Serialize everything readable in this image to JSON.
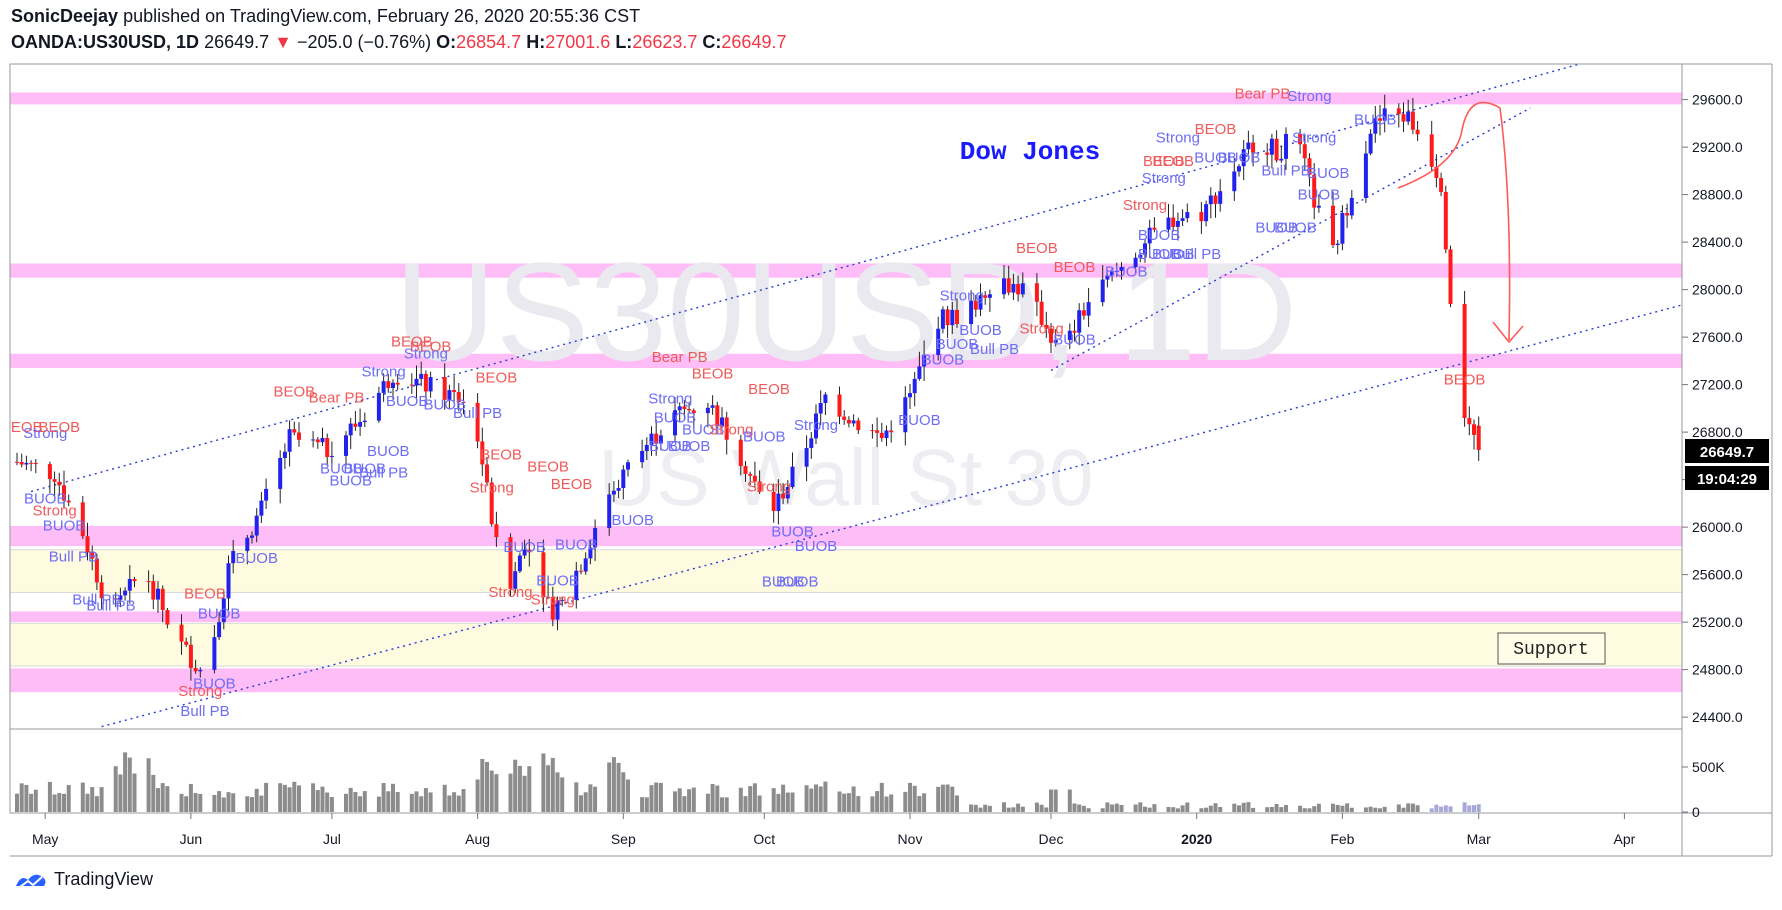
{
  "header": {
    "author": "SonicDeejay",
    "published": "published on TradingView.com, February 26, 2020 20:55:36 CST",
    "symbol": "OANDA:US30USD, 1D",
    "last": "26649.7",
    "change_arrow": "▼",
    "change": "−205.0 (−0.76%)",
    "o_label": "O:",
    "o_value": "26854.7",
    "h_label": "H:",
    "h_value": "27001.6",
    "l_label": "L:",
    "l_value": "26623.7",
    "c_label": "C:",
    "c_value": "26649.7"
  },
  "footer": {
    "brand": "TradingView"
  },
  "colors": {
    "up": "#2222ee",
    "down": "#ff1a1a",
    "zone_pink": "#ffbdf7",
    "zone_yellow": "#fffbe0",
    "bull_label": "#6d6df5",
    "bear_label": "#f05a5a",
    "volume": "#8c8c8c",
    "trendline": "#2b3bd6"
  },
  "chart_data": {
    "type": "candlestick",
    "title": "Dow Jones",
    "watermark": "US30USD, 1D",
    "watermark_sub": "US Wall St 30",
    "y_range": [
      24300,
      29900
    ],
    "y_ticks": [
      24400,
      24800,
      25200,
      25600,
      26000,
      26400,
      26800,
      27200,
      27600,
      28000,
      28400,
      28800,
      29200,
      29600
    ],
    "y_tick_labels": [
      "24400.0",
      "24800.0",
      "25200.0",
      "25600.0",
      "26000.0",
      "26400.0",
      "26800.0",
      "27200.0",
      "27600.0",
      "28000.0",
      "28400.0",
      "28800.0",
      "29200.0",
      "29600.0"
    ],
    "x_range_days": [
      0,
      355
    ],
    "x_ticks": [
      {
        "day": 6,
        "label": "May",
        "bold": false
      },
      {
        "day": 37,
        "label": "Jun",
        "bold": false
      },
      {
        "day": 67,
        "label": "Jul",
        "bold": false
      },
      {
        "day": 98,
        "label": "Aug",
        "bold": false
      },
      {
        "day": 129,
        "label": "Sep",
        "bold": false
      },
      {
        "day": 159,
        "label": "Oct",
        "bold": false
      },
      {
        "day": 190,
        "label": "Nov",
        "bold": false
      },
      {
        "day": 220,
        "label": "Dec",
        "bold": false
      },
      {
        "day": 251,
        "label": "2020",
        "bold": true
      },
      {
        "day": 282,
        "label": "Feb",
        "bold": false
      },
      {
        "day": 311,
        "label": "Mar",
        "bold": false
      },
      {
        "day": 342,
        "label": "Apr",
        "bold": false
      }
    ],
    "price_label": "26649.7",
    "countdown_label": "19:04:29",
    "volume_ticks": [
      {
        "v": 500000,
        "label": "500K"
      },
      {
        "v": 0,
        "label": "0"
      }
    ],
    "volume_max": 800000,
    "support_label": "Support",
    "zones": [
      {
        "kind": "resistance",
        "from": 29560,
        "to": 29660
      },
      {
        "kind": "resistance",
        "from": 28100,
        "to": 28220
      },
      {
        "kind": "resistance",
        "from": 27340,
        "to": 27460
      },
      {
        "kind": "resistance",
        "from": 25840,
        "to": 26010
      },
      {
        "kind": "support_fill",
        "from": 25450,
        "to": 25810
      },
      {
        "kind": "resistance",
        "from": 25200,
        "to": 25290
      },
      {
        "kind": "support_fill",
        "from": 24830,
        "to": 25190
      },
      {
        "kind": "resistance",
        "from": 24610,
        "to": 24810
      }
    ],
    "trendlines": [
      {
        "d1": 3,
        "p1": 26300,
        "d2": 338,
        "p2": 29960
      },
      {
        "d1": 18,
        "p1": 24320,
        "d2": 357,
        "p2": 27900
      },
      {
        "d1": 220,
        "p1": 27320,
        "d2": 322,
        "p2": 29530
      }
    ],
    "candles_keypoints": [
      {
        "d": 0,
        "c": 26550
      },
      {
        "d": 8,
        "c": 26450
      },
      {
        "d": 14,
        "c": 25950
      },
      {
        "d": 20,
        "c": 25250
      },
      {
        "d": 27,
        "c": 25650
      },
      {
        "d": 34,
        "c": 25050
      },
      {
        "d": 40,
        "c": 24750
      },
      {
        "d": 45,
        "c": 25650
      },
      {
        "d": 52,
        "c": 26150
      },
      {
        "d": 58,
        "c": 26750
      },
      {
        "d": 66,
        "c": 26650
      },
      {
        "d": 73,
        "c": 26900
      },
      {
        "d": 80,
        "c": 27300
      },
      {
        "d": 90,
        "c": 27150
      },
      {
        "d": 96,
        "c": 27050
      },
      {
        "d": 99,
        "c": 26550
      },
      {
        "d": 104,
        "c": 25350
      },
      {
        "d": 108,
        "c": 25900
      },
      {
        "d": 114,
        "c": 25300
      },
      {
        "d": 120,
        "c": 25700
      },
      {
        "d": 126,
        "c": 26300
      },
      {
        "d": 133,
        "c": 26650
      },
      {
        "d": 140,
        "c": 26950
      },
      {
        "d": 147,
        "c": 27050
      },
      {
        "d": 154,
        "c": 26600
      },
      {
        "d": 160,
        "c": 26100
      },
      {
        "d": 166,
        "c": 26500
      },
      {
        "d": 172,
        "c": 27100
      },
      {
        "d": 178,
        "c": 26900
      },
      {
        "d": 184,
        "c": 26750
      },
      {
        "d": 190,
        "c": 27100
      },
      {
        "d": 196,
        "c": 27750
      },
      {
        "d": 202,
        "c": 27800
      },
      {
        "d": 208,
        "c": 28100
      },
      {
        "d": 214,
        "c": 28000
      },
      {
        "d": 219,
        "c": 27700
      },
      {
        "d": 222,
        "c": 27450
      },
      {
        "d": 228,
        "c": 27900
      },
      {
        "d": 234,
        "c": 28150
      },
      {
        "d": 240,
        "c": 28400
      },
      {
        "d": 246,
        "c": 28600
      },
      {
        "d": 252,
        "c": 28650
      },
      {
        "d": 258,
        "c": 28950
      },
      {
        "d": 264,
        "c": 29300
      },
      {
        "d": 268,
        "c": 29150
      },
      {
        "d": 272,
        "c": 29300
      },
      {
        "d": 276,
        "c": 28750
      },
      {
        "d": 280,
        "c": 28300
      },
      {
        "d": 284,
        "c": 28850
      },
      {
        "d": 288,
        "c": 29350
      },
      {
        "d": 292,
        "c": 29500
      },
      {
        "d": 296,
        "c": 29450
      },
      {
        "d": 300,
        "c": 29200
      },
      {
        "d": 303,
        "c": 28900
      },
      {
        "d": 305,
        "c": 27950
      },
      {
        "d": 307,
        "c": 27100
      },
      {
        "d": 309,
        "c": 26850
      },
      {
        "d": 311,
        "c": 26649.7
      }
    ],
    "annotations": [
      {
        "text": "BEOB",
        "d": 1,
        "p": 26800,
        "type": "bear"
      },
      {
        "text": "Strong",
        "d": 6,
        "p": 26750,
        "type": "bull"
      },
      {
        "text": "BEOB",
        "d": 9,
        "p": 26800,
        "type": "bear"
      },
      {
        "text": "BUOB",
        "d": 6,
        "p": 26200,
        "type": "bull"
      },
      {
        "text": "Strong",
        "d": 8,
        "p": 26100,
        "type": "bear"
      },
      {
        "text": "BUOB",
        "d": 10,
        "p": 25970,
        "type": "bull"
      },
      {
        "text": "Bull PB",
        "d": 12,
        "p": 25710,
        "type": "bull"
      },
      {
        "text": "Bull PB",
        "d": 17,
        "p": 25350,
        "type": "bull"
      },
      {
        "text": "Bull PB",
        "d": 20,
        "p": 25300,
        "type": "bull"
      },
      {
        "text": "BEOB",
        "d": 40,
        "p": 25400,
        "type": "bear"
      },
      {
        "text": "BUOB",
        "d": 43,
        "p": 25230,
        "type": "bull"
      },
      {
        "text": "BUOB",
        "d": 42,
        "p": 24640,
        "type": "bull"
      },
      {
        "text": "Strong",
        "d": 39,
        "p": 24580,
        "type": "bear"
      },
      {
        "text": "Bull PB",
        "d": 40,
        "p": 24410,
        "type": "bull"
      },
      {
        "text": "BUOB",
        "d": 51,
        "p": 25700,
        "type": "bull"
      },
      {
        "text": "BEOB",
        "d": 59,
        "p": 27100,
        "type": "bear"
      },
      {
        "text": "Bear PB",
        "d": 68,
        "p": 27050,
        "type": "bear"
      },
      {
        "text": "BUOB",
        "d": 69,
        "p": 26450,
        "type": "bull"
      },
      {
        "text": "BUOB",
        "d": 71,
        "p": 26350,
        "type": "bull"
      },
      {
        "text": "BUOB",
        "d": 74,
        "p": 26450,
        "type": "bull"
      },
      {
        "text": "Bull PB",
        "d": 78,
        "p": 26420,
        "type": "bull"
      },
      {
        "text": "BUOB",
        "d": 79,
        "p": 26600,
        "type": "bull"
      },
      {
        "text": "Strong",
        "d": 78,
        "p": 27270,
        "type": "bull"
      },
      {
        "text": "BEOB",
        "d": 84,
        "p": 27520,
        "type": "bear"
      },
      {
        "text": "BEOB",
        "d": 88,
        "p": 27480,
        "type": "bear"
      },
      {
        "text": "Strong",
        "d": 87,
        "p": 27420,
        "type": "bull"
      },
      {
        "text": "BUOB",
        "d": 83,
        "p": 27020,
        "type": "bull"
      },
      {
        "text": "BUOB",
        "d": 91,
        "p": 26990,
        "type": "bull"
      },
      {
        "text": "Bull PB",
        "d": 98,
        "p": 26920,
        "type": "bull"
      },
      {
        "text": "BEOB",
        "d": 102,
        "p": 27220,
        "type": "bear"
      },
      {
        "text": "BEOB",
        "d": 103,
        "p": 26570,
        "type": "bear"
      },
      {
        "text": "Strong",
        "d": 101,
        "p": 26290,
        "type": "bear"
      },
      {
        "text": "BEOB",
        "d": 113,
        "p": 26470,
        "type": "bear"
      },
      {
        "text": "BEOB",
        "d": 118,
        "p": 26320,
        "type": "bear"
      },
      {
        "text": "BUOB",
        "d": 108,
        "p": 25790,
        "type": "bull"
      },
      {
        "text": "BUOB",
        "d": 119,
        "p": 25810,
        "type": "bull"
      },
      {
        "text": "BUOB",
        "d": 115,
        "p": 25510,
        "type": "bull"
      },
      {
        "text": "Strong",
        "d": 105,
        "p": 25410,
        "type": "bear"
      },
      {
        "text": "Strong",
        "d": 114,
        "p": 25350,
        "type": "bear"
      },
      {
        "text": "BUOB",
        "d": 131,
        "p": 26020,
        "type": "bull"
      },
      {
        "text": "Bear PB",
        "d": 141,
        "p": 27390,
        "type": "bear"
      },
      {
        "text": "BEOB",
        "d": 148,
        "p": 27250,
        "type": "bear"
      },
      {
        "text": "BEOB",
        "d": 160,
        "p": 27120,
        "type": "bear"
      },
      {
        "text": "Strong",
        "d": 139,
        "p": 27040,
        "type": "bull"
      },
      {
        "text": "BUOB",
        "d": 140,
        "p": 26880,
        "type": "bull"
      },
      {
        "text": "BUOB",
        "d": 146,
        "p": 26780,
        "type": "bull"
      },
      {
        "text": "Strong",
        "d": 152,
        "p": 26780,
        "type": "bear"
      },
      {
        "text": "BUOB",
        "d": 139,
        "p": 26640,
        "type": "bull"
      },
      {
        "text": "BUOB",
        "d": 143,
        "p": 26640,
        "type": "bull"
      },
      {
        "text": "BUOB",
        "d": 159,
        "p": 26720,
        "type": "bull"
      },
      {
        "text": "Strong",
        "d": 160,
        "p": 26300,
        "type": "bear"
      },
      {
        "text": "Strong",
        "d": 170,
        "p": 26820,
        "type": "bull"
      },
      {
        "text": "BUOB",
        "d": 165,
        "p": 25920,
        "type": "bull"
      },
      {
        "text": "BUOB",
        "d": 170,
        "p": 25800,
        "type": "bull"
      },
      {
        "text": "BUOB",
        "d": 163,
        "p": 25500,
        "type": "bull"
      },
      {
        "text": "BUOB",
        "d": 166,
        "p": 25500,
        "type": "bull"
      },
      {
        "text": "BUOB",
        "d": 192,
        "p": 26860,
        "type": "bull"
      },
      {
        "text": "Strong",
        "d": 201,
        "p": 27910,
        "type": "bull"
      },
      {
        "text": "BUOB",
        "d": 205,
        "p": 27620,
        "type": "bull"
      },
      {
        "text": "BUOB",
        "d": 200,
        "p": 27500,
        "type": "bull"
      },
      {
        "text": "Bull PB",
        "d": 208,
        "p": 27460,
        "type": "bull"
      },
      {
        "text": "BUOB",
        "d": 197,
        "p": 27370,
        "type": "bull"
      },
      {
        "text": "BEOB",
        "d": 217,
        "p": 28310,
        "type": "bear"
      },
      {
        "text": "BEOB",
        "d": 225,
        "p": 28150,
        "type": "bear"
      },
      {
        "text": "Strong",
        "d": 218,
        "p": 27630,
        "type": "bear"
      },
      {
        "text": "BUOB",
        "d": 225,
        "p": 27540,
        "type": "bull"
      },
      {
        "text": "BUOB",
        "d": 236,
        "p": 28110,
        "type": "bull"
      },
      {
        "text": "BEOB",
        "d": 244,
        "p": 29040,
        "type": "bear"
      },
      {
        "text": "BEOB",
        "d": 246,
        "p": 29040,
        "type": "bear"
      },
      {
        "text": "Strong",
        "d": 247,
        "p": 29240,
        "type": "bull"
      },
      {
        "text": "Strong",
        "d": 244,
        "p": 28900,
        "type": "bull"
      },
      {
        "text": "Strong",
        "d": 240,
        "p": 28670,
        "type": "bear"
      },
      {
        "text": "BUOB",
        "d": 243,
        "p": 28420,
        "type": "bull"
      },
      {
        "text": "BUOB",
        "d": 243,
        "p": 28260,
        "type": "bull"
      },
      {
        "text": "BUOB",
        "d": 246,
        "p": 28260,
        "type": "bull"
      },
      {
        "text": "Bull PB",
        "d": 251,
        "p": 28260,
        "type": "bull"
      },
      {
        "text": "BUOB",
        "d": 255,
        "p": 29070,
        "type": "bull"
      },
      {
        "text": "BEOB",
        "d": 255,
        "p": 29310,
        "type": "bear"
      },
      {
        "text": "BUOB",
        "d": 260,
        "p": 29070,
        "type": "bull"
      },
      {
        "text": "Bear PB",
        "d": 265,
        "p": 29610,
        "type": "bear"
      },
      {
        "text": "Strong",
        "d": 275,
        "p": 29590,
        "type": "bull"
      },
      {
        "text": "Bull PB",
        "d": 270,
        "p": 28960,
        "type": "bull"
      },
      {
        "text": "Strong",
        "d": 276,
        "p": 29240,
        "type": "bull"
      },
      {
        "text": "BUOB",
        "d": 279,
        "p": 28940,
        "type": "bull"
      },
      {
        "text": "BUOB",
        "d": 277,
        "p": 28760,
        "type": "bull"
      },
      {
        "text": "BUOB",
        "d": 268,
        "p": 28480,
        "type": "bull"
      },
      {
        "text": "BUOB",
        "d": 272,
        "p": 28480,
        "type": "bull"
      },
      {
        "text": "BUOB",
        "d": 289,
        "p": 29390,
        "type": "bull"
      },
      {
        "text": "BEOB",
        "d": 308,
        "p": 27200,
        "type": "bear"
      }
    ]
  }
}
